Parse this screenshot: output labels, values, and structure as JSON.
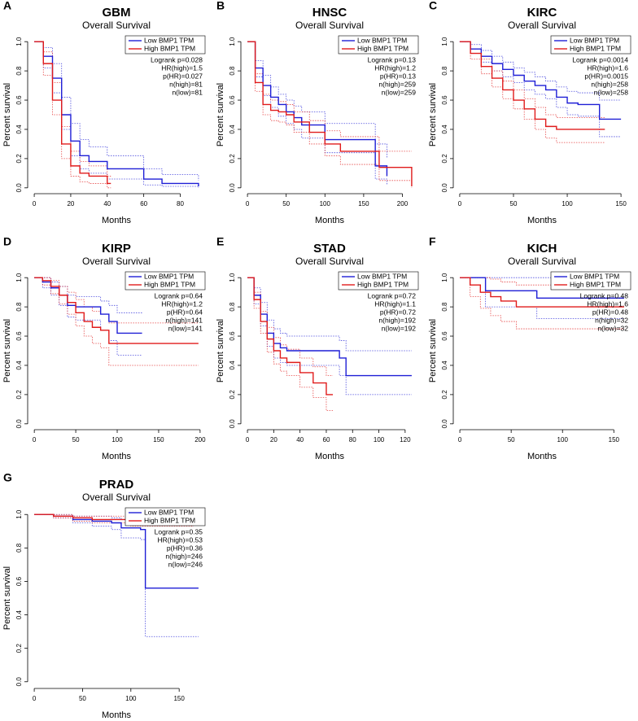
{
  "chart_data": [
    {
      "type": "line",
      "letter": "A",
      "title": "GBM",
      "subtitle": "Overall Survival",
      "x_label": "Months",
      "y_label": "Percent survival",
      "xlim": [
        -3.6,
        93.6
      ],
      "xticks": [
        0,
        20,
        40,
        60,
        80
      ],
      "ylim": [
        -0.04,
        1.04
      ],
      "yticks": [
        {
          "value": 0,
          "label": "0.0"
        },
        0.2,
        0.4,
        0.6,
        0.8,
        {
          "value": 1,
          "label": "1.0"
        }
      ],
      "annotations": [
        "Logrank p=0.028",
        "HR(high)=1.5",
        "p(HR)=0.027",
        "n(high)=81",
        "n(low)=81"
      ],
      "series": [
        {
          "name": "Low BMP1 TPM",
          "color": "#1f1fd6",
          "x": [
            0,
            5,
            10,
            15,
            20,
            25,
            30,
            40,
            50,
            60,
            70,
            90
          ],
          "values": [
            1,
            0.9,
            0.75,
            0.5,
            0.32,
            0.22,
            0.18,
            0.13,
            0.13,
            0.06,
            0.03,
            0.01
          ],
          "ci_high": [
            1,
            0.96,
            0.85,
            0.62,
            0.44,
            0.33,
            0.28,
            0.22,
            0.22,
            0.13,
            0.09,
            0.05
          ],
          "ci_low": [
            1,
            0.82,
            0.65,
            0.4,
            0.22,
            0.13,
            0.1,
            0.06,
            0.06,
            0.02,
            0.01,
            0
          ]
        },
        {
          "name": "High BMP1 TPM",
          "color": "#e01b1b",
          "x": [
            0,
            5,
            10,
            15,
            20,
            25,
            30,
            40,
            42
          ],
          "values": [
            1,
            0.85,
            0.6,
            0.3,
            0.15,
            0.1,
            0.08,
            0.03,
            0.03
          ],
          "ci_high": [
            1,
            0.93,
            0.72,
            0.42,
            0.25,
            0.18,
            0.15,
            0.08,
            0.08
          ],
          "ci_low": [
            1,
            0.77,
            0.5,
            0.2,
            0.08,
            0.04,
            0.03,
            0,
            0
          ]
        }
      ]
    },
    {
      "type": "line",
      "letter": "B",
      "title": "HNSC",
      "subtitle": "Overall Survival",
      "x_label": "Months",
      "y_label": "Percent survival",
      "xlim": [
        -8.5,
        220.5
      ],
      "xticks": [
        0,
        50,
        100,
        150,
        200
      ],
      "ylim": [
        -0.04,
        1.04
      ],
      "yticks": [
        {
          "value": 0,
          "label": "0.0"
        },
        0.2,
        0.4,
        0.6,
        0.8,
        {
          "value": 1,
          "label": "1.0"
        }
      ],
      "annotations": [
        "Logrank p=0.13",
        "HR(high)=1.2",
        "p(HR)=0.13",
        "n(high)=259",
        "n(low)=259"
      ],
      "series": [
        {
          "name": "Low BMP1 TPM",
          "color": "#1f1fd6",
          "x": [
            0,
            10,
            20,
            30,
            40,
            50,
            60,
            70,
            80,
            100,
            120,
            160,
            165,
            180
          ],
          "values": [
            1,
            0.82,
            0.7,
            0.62,
            0.57,
            0.52,
            0.48,
            0.43,
            0.43,
            0.33,
            0.33,
            0.33,
            0.15,
            0.08
          ],
          "ci_high": [
            1,
            0.87,
            0.77,
            0.69,
            0.64,
            0.6,
            0.56,
            0.52,
            0.52,
            0.44,
            0.44,
            0.44,
            0.3,
            0.2
          ],
          "ci_low": [
            1,
            0.76,
            0.63,
            0.55,
            0.49,
            0.44,
            0.4,
            0.34,
            0.34,
            0.24,
            0.24,
            0.24,
            0.06,
            0.02
          ]
        },
        {
          "name": "High BMP1 TPM",
          "color": "#e01b1b",
          "x": [
            0,
            10,
            20,
            30,
            40,
            50,
            60,
            80,
            100,
            120,
            170,
            212
          ],
          "values": [
            1,
            0.72,
            0.57,
            0.53,
            0.52,
            0.5,
            0.45,
            0.38,
            0.3,
            0.25,
            0.14,
            0.01
          ],
          "ci_high": [
            1,
            0.78,
            0.64,
            0.6,
            0.59,
            0.57,
            0.52,
            0.46,
            0.39,
            0.35,
            0.25,
            0.25
          ],
          "ci_low": [
            1,
            0.66,
            0.5,
            0.46,
            0.45,
            0.43,
            0.38,
            0.3,
            0.22,
            0.16,
            0.05,
            0
          ]
        }
      ]
    },
    {
      "type": "line",
      "letter": "C",
      "title": "KIRC",
      "subtitle": "Overall Survival",
      "x_label": "Months",
      "y_label": "Percent survival",
      "xlim": [
        -6,
        159
      ],
      "xticks": [
        0,
        50,
        100,
        150
      ],
      "ylim": [
        -0.04,
        1.04
      ],
      "yticks": [
        {
          "value": 0,
          "label": "0.0"
        },
        0.2,
        0.4,
        0.6,
        0.8,
        {
          "value": 1,
          "label": "1.0"
        }
      ],
      "annotations": [
        "Logrank p=0.0014",
        "HR(high)=1.6",
        "p(HR)=0.0015",
        "n(high)=258",
        "n(low)=258"
      ],
      "series": [
        {
          "name": "Low BMP1 TPM",
          "color": "#1f1fd6",
          "x": [
            0,
            10,
            20,
            30,
            40,
            50,
            60,
            70,
            80,
            90,
            100,
            110,
            120,
            130,
            150
          ],
          "values": [
            1,
            0.95,
            0.9,
            0.85,
            0.81,
            0.77,
            0.73,
            0.7,
            0.67,
            0.62,
            0.58,
            0.57,
            0.57,
            0.47,
            0.47
          ],
          "ci_high": [
            1,
            0.98,
            0.94,
            0.9,
            0.86,
            0.82,
            0.79,
            0.76,
            0.73,
            0.69,
            0.66,
            0.65,
            0.65,
            0.6,
            0.6
          ],
          "ci_low": [
            1,
            0.92,
            0.86,
            0.8,
            0.76,
            0.72,
            0.67,
            0.64,
            0.61,
            0.55,
            0.5,
            0.49,
            0.49,
            0.35,
            0.35
          ]
        },
        {
          "name": "High BMP1 TPM",
          "color": "#e01b1b",
          "x": [
            0,
            10,
            20,
            30,
            40,
            50,
            60,
            70,
            80,
            90,
            100,
            135
          ],
          "values": [
            1,
            0.92,
            0.83,
            0.75,
            0.67,
            0.6,
            0.54,
            0.47,
            0.42,
            0.4,
            0.4,
            0.4
          ],
          "ci_high": [
            1,
            0.95,
            0.88,
            0.8,
            0.73,
            0.67,
            0.61,
            0.55,
            0.5,
            0.48,
            0.48,
            0.48
          ],
          "ci_low": [
            1,
            0.88,
            0.78,
            0.69,
            0.61,
            0.54,
            0.47,
            0.4,
            0.34,
            0.31,
            0.31,
            0.31
          ]
        }
      ]
    },
    {
      "type": "line",
      "letter": "D",
      "title": "KIRP",
      "subtitle": "Overall Survival",
      "x_label": "Months",
      "y_label": "Percent survival",
      "xlim": [
        -8,
        206
      ],
      "xticks": [
        0,
        50,
        100,
        150,
        200
      ],
      "ylim": [
        -0.04,
        1.04
      ],
      "yticks": [
        {
          "value": 0,
          "label": "0.0"
        },
        0.2,
        0.4,
        0.6,
        0.8,
        {
          "value": 1,
          "label": "1.0"
        }
      ],
      "annotations": [
        "Logrank p=0.64",
        "HR(high)=1.2",
        "p(HR)=0.64",
        "n(high)=141",
        "n(low)=141"
      ],
      "series": [
        {
          "name": "Low BMP1 TPM",
          "color": "#1f1fd6",
          "x": [
            0,
            10,
            20,
            30,
            40,
            50,
            60,
            80,
            90,
            100,
            130
          ],
          "values": [
            1,
            0.97,
            0.93,
            0.88,
            0.81,
            0.8,
            0.8,
            0.75,
            0.7,
            0.62,
            0.62
          ],
          "ci_high": [
            1,
            1,
            0.97,
            0.94,
            0.88,
            0.87,
            0.87,
            0.84,
            0.81,
            0.76,
            0.76
          ],
          "ci_low": [
            1,
            0.93,
            0.88,
            0.81,
            0.73,
            0.71,
            0.71,
            0.64,
            0.57,
            0.47,
            0.47
          ]
        },
        {
          "name": "High BMP1 TPM",
          "color": "#e01b1b",
          "x": [
            0,
            10,
            20,
            30,
            40,
            50,
            60,
            70,
            80,
            90,
            100,
            198
          ],
          "values": [
            1,
            0.98,
            0.94,
            0.88,
            0.83,
            0.76,
            0.7,
            0.66,
            0.64,
            0.55,
            0.55,
            0.55
          ],
          "ci_high": [
            1,
            1,
            0.98,
            0.94,
            0.9,
            0.85,
            0.8,
            0.77,
            0.75,
            0.69,
            0.69,
            0.69
          ],
          "ci_low": [
            1,
            0.95,
            0.89,
            0.82,
            0.75,
            0.67,
            0.6,
            0.55,
            0.52,
            0.4,
            0.4,
            0.4
          ]
        }
      ]
    },
    {
      "type": "line",
      "letter": "E",
      "title": "STAD",
      "subtitle": "Overall Survival",
      "x_label": "Months",
      "y_label": "Percent survival",
      "xlim": [
        -5,
        130
      ],
      "xticks": [
        0,
        20,
        40,
        60,
        80,
        100,
        120
      ],
      "ylim": [
        -0.04,
        1.04
      ],
      "yticks": [
        {
          "value": 0,
          "label": "0.0"
        },
        0.2,
        0.4,
        0.6,
        0.8,
        {
          "value": 1,
          "label": "1.0"
        }
      ],
      "annotations": [
        "Logrank p=0.72",
        "HR(high)=1.1",
        "p(HR)=0.72",
        "n(high)=192",
        "n(low)=192"
      ],
      "series": [
        {
          "name": "Low BMP1 TPM",
          "color": "#1f1fd6",
          "x": [
            0,
            5,
            10,
            15,
            20,
            25,
            30,
            40,
            50,
            60,
            70,
            75,
            125
          ],
          "values": [
            1,
            0.88,
            0.75,
            0.62,
            0.55,
            0.52,
            0.5,
            0.5,
            0.5,
            0.5,
            0.45,
            0.33,
            0.33
          ],
          "ci_high": [
            1,
            0.93,
            0.83,
            0.71,
            0.65,
            0.62,
            0.6,
            0.6,
            0.6,
            0.6,
            0.57,
            0.5,
            0.5
          ],
          "ci_low": [
            1,
            0.82,
            0.67,
            0.53,
            0.45,
            0.42,
            0.4,
            0.4,
            0.4,
            0.4,
            0.33,
            0.2,
            0.2
          ]
        },
        {
          "name": "High BMP1 TPM",
          "color": "#e01b1b",
          "x": [
            0,
            5,
            10,
            15,
            20,
            25,
            30,
            40,
            50,
            60,
            65
          ],
          "values": [
            1,
            0.85,
            0.7,
            0.58,
            0.5,
            0.45,
            0.42,
            0.35,
            0.28,
            0.2,
            0.2
          ],
          "ci_high": [
            1,
            0.9,
            0.77,
            0.66,
            0.59,
            0.54,
            0.51,
            0.45,
            0.39,
            0.33,
            0.33
          ],
          "ci_low": [
            1,
            0.79,
            0.62,
            0.49,
            0.41,
            0.36,
            0.33,
            0.25,
            0.18,
            0.09,
            0.09
          ]
        }
      ]
    },
    {
      "type": "line",
      "letter": "F",
      "title": "KICH",
      "subtitle": "Overall Survival",
      "x_label": "Months",
      "y_label": "Percent survival",
      "xlim": [
        -6.4,
        166.4
      ],
      "xticks": [
        0,
        50,
        100,
        150
      ],
      "ylim": [
        -0.04,
        1.04
      ],
      "yticks": [
        {
          "value": 0,
          "label": "0.0"
        },
        0.2,
        0.4,
        0.6,
        0.8,
        {
          "value": 1,
          "label": "1.0"
        }
      ],
      "annotations": [
        "Logrank p=0.48",
        "HR(high)=1.6",
        "p(HR)=0.48",
        "n(high)=32",
        "n(low)=32"
      ],
      "series": [
        {
          "name": "Low BMP1 TPM",
          "color": "#1f1fd6",
          "x": [
            0,
            20,
            25,
            75,
            100,
            150,
            160
          ],
          "values": [
            1,
            1,
            0.91,
            0.86,
            0.86,
            0.86,
            0.86
          ],
          "ci_high": [
            1,
            1,
            1,
            1,
            1,
            1,
            1
          ],
          "ci_low": [
            1,
            1,
            0.8,
            0.72,
            0.72,
            0.72,
            0.72
          ]
        },
        {
          "name": "High BMP1 TPM",
          "color": "#e01b1b",
          "x": [
            0,
            10,
            20,
            30,
            40,
            55,
            100,
            160
          ],
          "values": [
            1,
            0.95,
            0.9,
            0.87,
            0.84,
            0.8,
            0.8,
            0.8
          ],
          "ci_high": [
            1,
            1,
            1,
            0.99,
            0.97,
            0.95,
            0.95,
            0.95
          ],
          "ci_low": [
            1,
            0.87,
            0.79,
            0.74,
            0.7,
            0.65,
            0.65,
            0.65
          ]
        }
      ]
    },
    {
      "type": "line",
      "letter": "G",
      "title": "PRAD",
      "subtitle": "Overall Survival",
      "x_label": "Months",
      "y_label": "Percent survival",
      "xlim": [
        -6.8,
        176.8
      ],
      "xticks": [
        0,
        50,
        100,
        150
      ],
      "ylim": [
        -0.04,
        1.04
      ],
      "yticks": [
        {
          "value": 0,
          "label": "0.0"
        },
        0.2,
        0.4,
        0.6,
        0.8,
        {
          "value": 1,
          "label": "1.0"
        }
      ],
      "annotations": [
        "Logrank p=0.35",
        "HR(high)=0.53",
        "p(HR)=0.36",
        "n(high)=246",
        "n(low)=246"
      ],
      "series": [
        {
          "name": "Low BMP1 TPM",
          "color": "#1f1fd6",
          "x": [
            0,
            20,
            40,
            60,
            80,
            90,
            110,
            115,
            170
          ],
          "values": [
            1,
            0.99,
            0.97,
            0.96,
            0.95,
            0.92,
            0.91,
            0.56,
            0.56
          ],
          "ci_high": [
            1,
            1,
            0.99,
            0.99,
            0.98,
            0.97,
            0.96,
            0.94,
            0.94
          ],
          "ci_low": [
            1,
            0.98,
            0.95,
            0.93,
            0.91,
            0.86,
            0.85,
            0.27,
            0.27
          ]
        },
        {
          "name": "High BMP1 TPM",
          "color": "#e01b1b",
          "x": [
            0,
            20,
            40,
            60,
            80,
            100,
            120,
            140,
            165
          ],
          "values": [
            1,
            0.99,
            0.98,
            0.97,
            0.97,
            0.96,
            0.96,
            0.96,
            0.96
          ],
          "ci_high": [
            1,
            1,
            0.99,
            0.99,
            0.99,
            0.98,
            0.98,
            0.98,
            0.98
          ],
          "ci_low": [
            1,
            0.98,
            0.96,
            0.95,
            0.95,
            0.93,
            0.93,
            0.93,
            0.93
          ]
        }
      ]
    }
  ]
}
